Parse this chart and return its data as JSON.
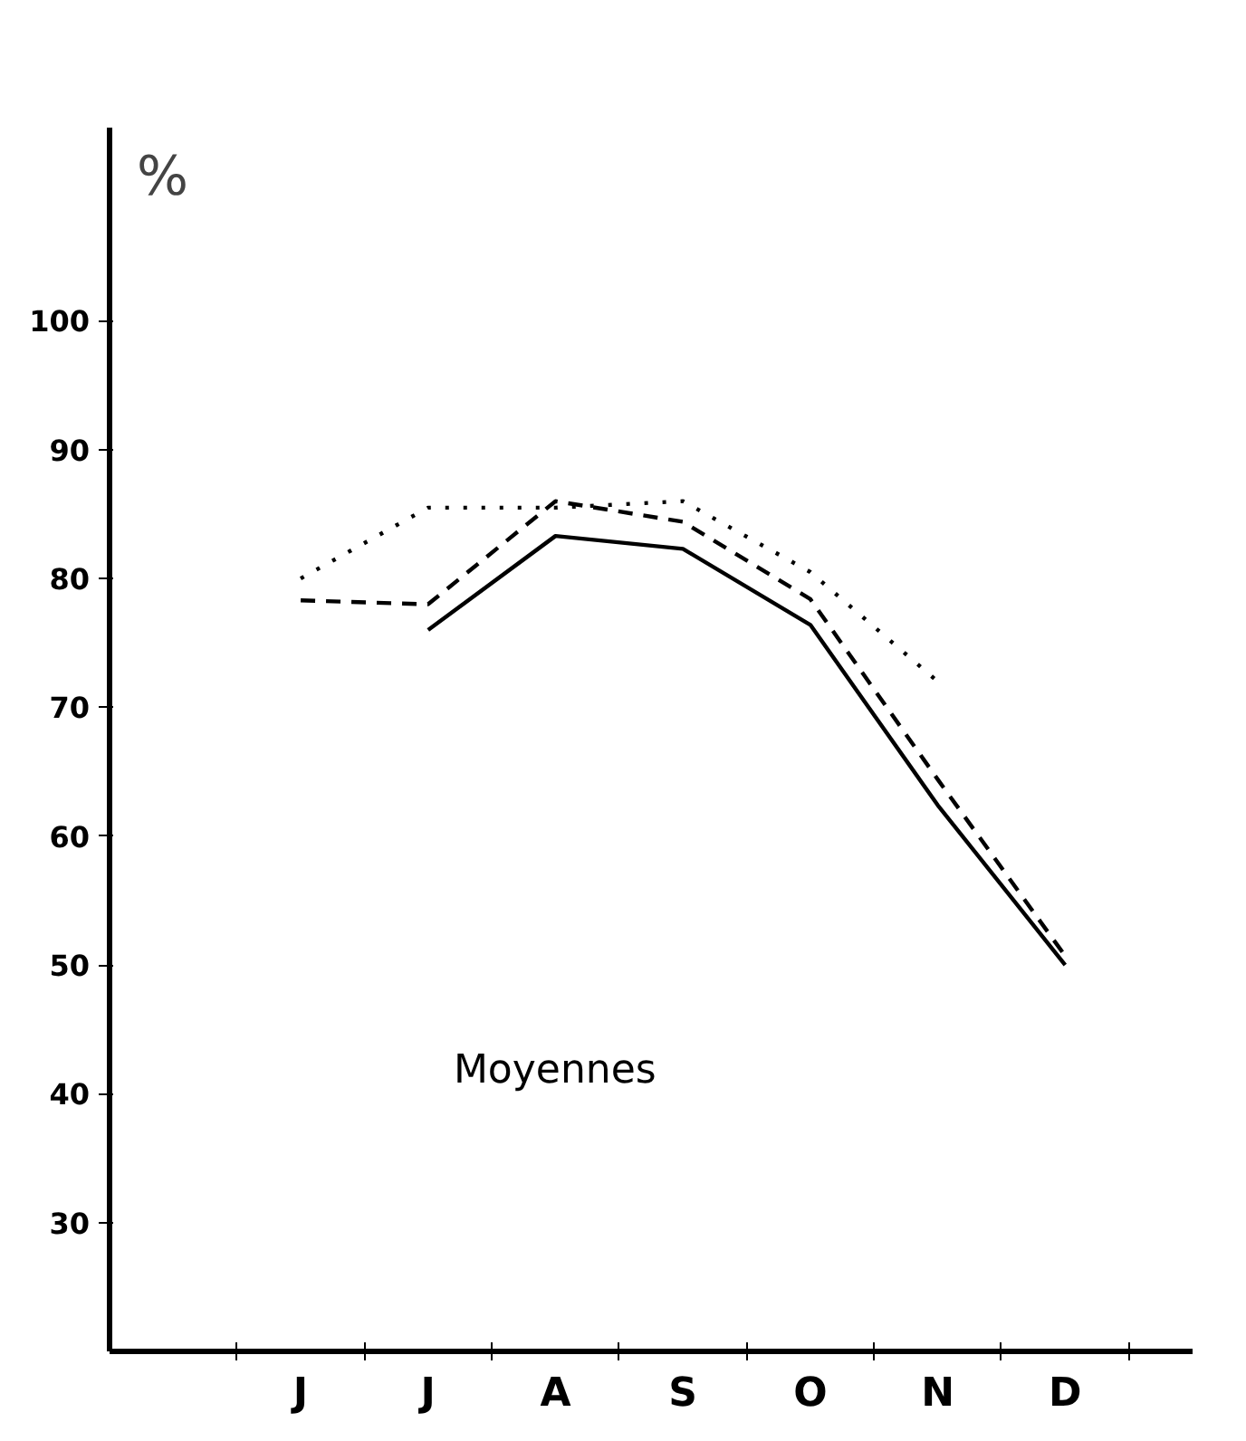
{
  "chart_data": {
    "type": "line",
    "ylabel": "%",
    "categories": [
      "J",
      "J",
      "A",
      "S",
      "O",
      "N",
      "D"
    ],
    "ylim": [
      20,
      115
    ],
    "yticks": [
      30,
      40,
      50,
      60,
      70,
      80,
      90,
      100
    ],
    "grid": false,
    "annotations": [
      "Moyennes"
    ],
    "series": [
      {
        "color": "#000000",
        "line_style": "solid",
        "values": [
          null,
          76,
          83.3,
          82.3,
          76.4,
          62.4,
          50
        ]
      },
      {
        "color": "#000000",
        "line_style": "dashed",
        "values": [
          78.3,
          78,
          86,
          84.4,
          78.4,
          64.4,
          50.7
        ]
      },
      {
        "color": "#000000",
        "line_style": "dotted",
        "values": [
          80,
          85.5,
          85.5,
          86,
          80.5,
          72,
          null
        ]
      }
    ]
  }
}
